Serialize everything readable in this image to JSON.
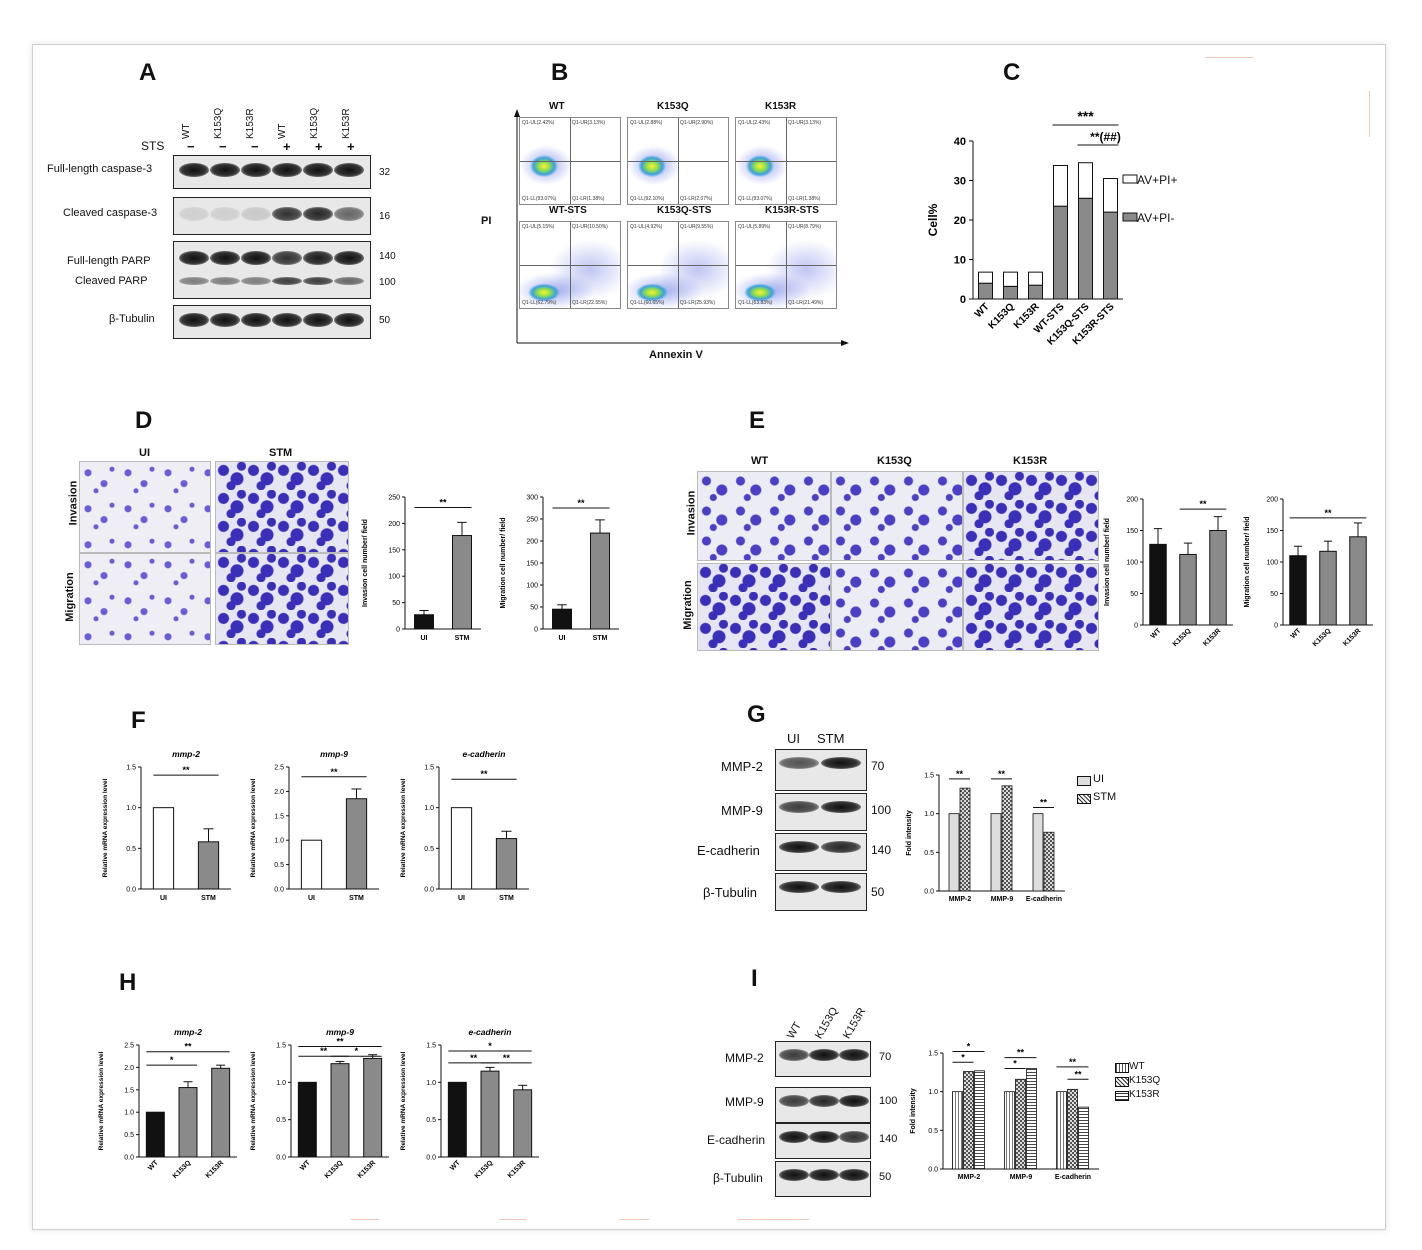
{
  "panels": {
    "A": "A",
    "B": "B",
    "C": "C",
    "D": "D",
    "E": "E",
    "F": "F",
    "G": "G",
    "H": "H",
    "I": "I"
  },
  "panelA": {
    "lanes": [
      "WT",
      "K153Q",
      "K153R",
      "WT",
      "K153Q",
      "K153R"
    ],
    "sts_label": "STS",
    "sts": [
      "−",
      "−",
      "−",
      "+",
      "+",
      "+"
    ],
    "rows": [
      "Full-length caspase-3",
      "Cleaved caspase-3",
      "Full-length PARP",
      "Cleaved PARP",
      "β-Tubulin"
    ],
    "mw": [
      "32",
      "16",
      "140",
      "100",
      "50"
    ]
  },
  "panelB": {
    "top": [
      "WT",
      "K153Q",
      "K153R"
    ],
    "bottom": [
      "WT-STS",
      "K153Q-STS",
      "K153R-STS"
    ],
    "ylabel": "PI",
    "xlabel": "Annexin V",
    "quads": [
      [
        "Q1-UL(2.42%)",
        "Q1-UR(3.13%)",
        "Q1-LL(93.07%)",
        "Q1-LR(1.38%)"
      ],
      [
        "Q1-UL(2.88%)",
        "Q1-UR(2.90%)",
        "Q1-LL(92.10%)",
        "Q1-LR(2.07%)"
      ],
      [
        "Q1-UL(2.43%)",
        "Q1-UR(3.13%)",
        "Q1-LL(93.07%)",
        "Q1-LR(1.38%)"
      ],
      [
        "Q1-UL(5.15%)",
        "Q1-UR(10.50%)",
        "Q1-LL(62.79%)",
        "Q1-LR(22.55%)"
      ],
      [
        "Q1-UL(4.92%)",
        "Q1-UR(9.55%)",
        "Q1-LL(60.65%)",
        "Q1-LR(25.93%)"
      ],
      [
        "Q1-UL(5.89%)",
        "Q1-UR(8.79%)",
        "Q1-LL(63.83%)",
        "Q1-LR(21.49%)"
      ]
    ]
  },
  "panelC": {
    "ylabel": "Cell%",
    "legend": [
      "AV+PI+",
      "AV+PI-"
    ],
    "sig1": "***",
    "sig2": "**(##)"
  },
  "panelD": {
    "cols": [
      "UI",
      "STM"
    ],
    "rows": [
      "Invasion",
      "Migration"
    ],
    "ylabel_inv": "Invasion cell number/ field",
    "ylabel_mig": "Migration cell number/ field",
    "sig": "**"
  },
  "panelE": {
    "cols": [
      "WT",
      "K153Q",
      "K153R"
    ],
    "rows": [
      "Invasion",
      "Migration"
    ],
    "ylabel_inv": "Invasion cell number/ field",
    "ylabel_mig": "Migration cell number/ field",
    "sig": "**"
  },
  "panelF": {
    "titles": [
      "mmp-2",
      "mmp-9",
      "e-cadherin"
    ],
    "ylabel": "Relative mRNA expression level",
    "sig": "**"
  },
  "panelG": {
    "lanes": [
      "UI",
      "STM"
    ],
    "rows": [
      "MMP-2",
      "MMP-9",
      "E-cadherin",
      "β-Tubulin"
    ],
    "mw": [
      "70",
      "100",
      "140",
      "50"
    ],
    "ylabel": "Fold intensity",
    "legend": [
      "UI",
      "STM"
    ],
    "sig": "**"
  },
  "panelH": {
    "titles": [
      "mmp-2",
      "mmp-9",
      "e-cadherin"
    ],
    "ylabel": "Relative mRNA expression level"
  },
  "panelI": {
    "lanes": [
      "WT",
      "K153Q",
      "K153R"
    ],
    "rows": [
      "MMP-2",
      "MMP-9",
      "E-cadherin",
      "β-Tubulin"
    ],
    "mw": [
      "70",
      "100",
      "140",
      "50"
    ],
    "ylabel": "Fold intensity",
    "legend": [
      "WT",
      "K153Q",
      "K153R"
    ]
  },
  "chart_data": [
    {
      "id": "C",
      "type": "bar",
      "stacked": true,
      "categories": [
        "WT",
        "K153Q",
        "K153R",
        "WT-STS",
        "K153Q-STS",
        "K153R-STS"
      ],
      "series": [
        {
          "name": "AV+PI-",
          "values": [
            4,
            3.2,
            3.5,
            23.5,
            25.5,
            22
          ]
        },
        {
          "name": "AV+PI+",
          "values": [
            2.8,
            3.6,
            3.3,
            10.3,
            9,
            8.5
          ]
        }
      ],
      "ylabel": "Cell%",
      "ylim": [
        0,
        40
      ],
      "yticks": [
        0,
        10,
        20,
        30,
        40
      ]
    },
    {
      "id": "D-inv",
      "type": "bar",
      "categories": [
        "UI",
        "STM"
      ],
      "values": [
        27,
        177
      ],
      "errors": [
        8,
        25
      ],
      "ylabel": "Invasion cell number/ field",
      "ylim": [
        0,
        250
      ],
      "yticks": [
        0,
        50,
        100,
        150,
        200,
        250
      ]
    },
    {
      "id": "D-mig",
      "type": "bar",
      "categories": [
        "UI",
        "STM"
      ],
      "values": [
        45,
        218
      ],
      "errors": [
        10,
        30
      ],
      "ylabel": "Migration cell number/ field",
      "ylim": [
        0,
        300
      ],
      "yticks": [
        0,
        50,
        100,
        150,
        200,
        250,
        300
      ]
    },
    {
      "id": "E-inv",
      "type": "bar",
      "categories": [
        "WT",
        "K153Q",
        "K153R"
      ],
      "values": [
        128,
        112,
        150
      ],
      "errors": [
        25,
        18,
        22
      ],
      "ylabel": "Invasion cell number/ field",
      "ylim": [
        0,
        200
      ],
      "yticks": [
        0,
        50,
        100,
        150,
        200
      ]
    },
    {
      "id": "E-mig",
      "type": "bar",
      "categories": [
        "WT",
        "K153Q",
        "K153R"
      ],
      "values": [
        110,
        117,
        140
      ],
      "errors": [
        15,
        16,
        22
      ],
      "ylabel": "Migration cell number/ field",
      "ylim": [
        0,
        200
      ],
      "yticks": [
        0,
        50,
        100,
        150,
        200
      ]
    },
    {
      "id": "F1",
      "type": "bar",
      "title": "mmp-2",
      "categories": [
        "UI",
        "STM"
      ],
      "values": [
        1.0,
        0.58
      ],
      "errors": [
        0,
        0.16
      ],
      "ylim": [
        0,
        1.5
      ],
      "yticks": [
        0.0,
        0.5,
        1.0,
        1.5
      ]
    },
    {
      "id": "F2",
      "type": "bar",
      "title": "mmp-9",
      "categories": [
        "UI",
        "STM"
      ],
      "values": [
        1.0,
        1.85
      ],
      "errors": [
        0,
        0.2
      ],
      "ylim": [
        0,
        2.5
      ],
      "yticks": [
        0.0,
        0.5,
        1.0,
        1.5,
        2.0,
        2.5
      ]
    },
    {
      "id": "F3",
      "type": "bar",
      "title": "e-cadherin",
      "categories": [
        "UI",
        "STM"
      ],
      "values": [
        1.0,
        0.62
      ],
      "errors": [
        0,
        0.09
      ],
      "ylim": [
        0,
        1.5
      ],
      "yticks": [
        0.0,
        0.5,
        1.0,
        1.5
      ]
    },
    {
      "id": "G",
      "type": "bar",
      "categories": [
        "MMP-2",
        "MMP-9",
        "E-cadherin"
      ],
      "series": [
        {
          "name": "UI",
          "values": [
            1.0,
            1.0,
            1.0
          ]
        },
        {
          "name": "STM",
          "values": [
            1.33,
            1.36,
            0.76
          ]
        }
      ],
      "ylabel": "Fold intensity",
      "ylim": [
        0,
        1.5
      ],
      "yticks": [
        0.0,
        0.5,
        1.0,
        1.5
      ]
    },
    {
      "id": "H1",
      "type": "bar",
      "title": "mmp-2",
      "categories": [
        "WT",
        "K153Q",
        "K153R"
      ],
      "values": [
        1.0,
        1.55,
        1.98
      ],
      "errors": [
        0,
        0.13,
        0.07
      ],
      "ylim": [
        0,
        2.5
      ],
      "yticks": [
        0.0,
        0.5,
        1.0,
        1.5,
        2.0,
        2.5
      ]
    },
    {
      "id": "H2",
      "type": "bar",
      "title": "mmp-9",
      "categories": [
        "WT",
        "K153Q",
        "K153R"
      ],
      "values": [
        1.0,
        1.25,
        1.32
      ],
      "errors": [
        0,
        0.03,
        0.05
      ],
      "ylim": [
        0,
        1.5
      ],
      "yticks": [
        0.0,
        0.5,
        1.0,
        1.5
      ]
    },
    {
      "id": "H3",
      "type": "bar",
      "title": "e-cadherin",
      "categories": [
        "WT",
        "K153Q",
        "K153R"
      ],
      "values": [
        1.0,
        1.15,
        0.9
      ],
      "errors": [
        0,
        0.05,
        0.06
      ],
      "ylim": [
        0,
        1.5
      ],
      "yticks": [
        0.0,
        0.5,
        1.0,
        1.5
      ]
    },
    {
      "id": "I",
      "type": "bar",
      "categories": [
        "MMP-2",
        "MMP-9",
        "E-cadherin"
      ],
      "series": [
        {
          "name": "WT",
          "values": [
            1.0,
            1.0,
            1.0
          ]
        },
        {
          "name": "K153Q",
          "values": [
            1.26,
            1.16,
            1.03
          ]
        },
        {
          "name": "K153R",
          "values": [
            1.27,
            1.3,
            0.8
          ]
        }
      ],
      "ylabel": "Fold intensity",
      "ylim": [
        0,
        1.5
      ],
      "yticks": [
        0.0,
        0.5,
        1.0,
        1.5
      ]
    }
  ]
}
